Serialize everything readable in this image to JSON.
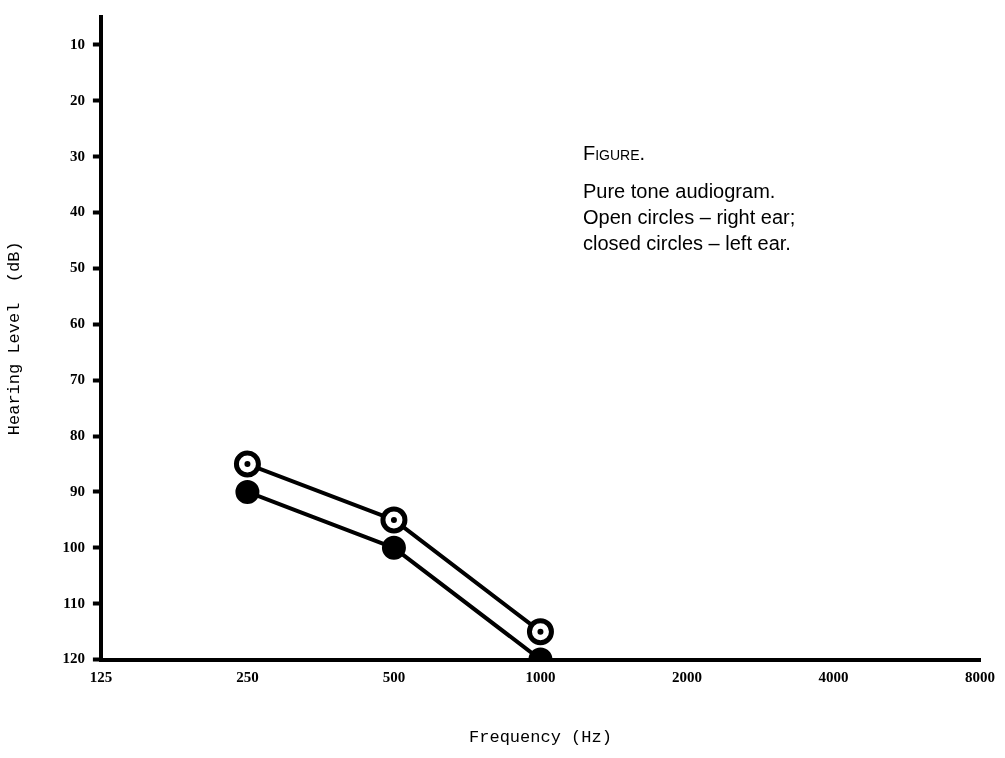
{
  "chart_data": {
    "type": "line",
    "xlabel": "Frequency (Hz)",
    "ylabel": "Hearing Level  (dB)",
    "categories": [
      "125",
      "250",
      "500",
      "1000",
      "2000",
      "4000",
      "8000"
    ],
    "series": [
      {
        "color": "#000000",
        "values": [
          null,
          85,
          95,
          115,
          null,
          null,
          null
        ]
      },
      {
        "color": "#000000",
        "values": [
          null,
          90,
          100,
          120,
          null,
          null,
          null
        ]
      }
    ],
    "ylim": [
      120,
      5
    ],
    "yticks": [
      10,
      20,
      30,
      40,
      50,
      60,
      70,
      80,
      90,
      100,
      110,
      120
    ],
    "grid": false,
    "legend": false,
    "marker": "circle",
    "annotations": [
      "Figure.",
      "Pure tone audiogram.",
      "Open circles – right ear;",
      "closed circles – left ear."
    ]
  }
}
